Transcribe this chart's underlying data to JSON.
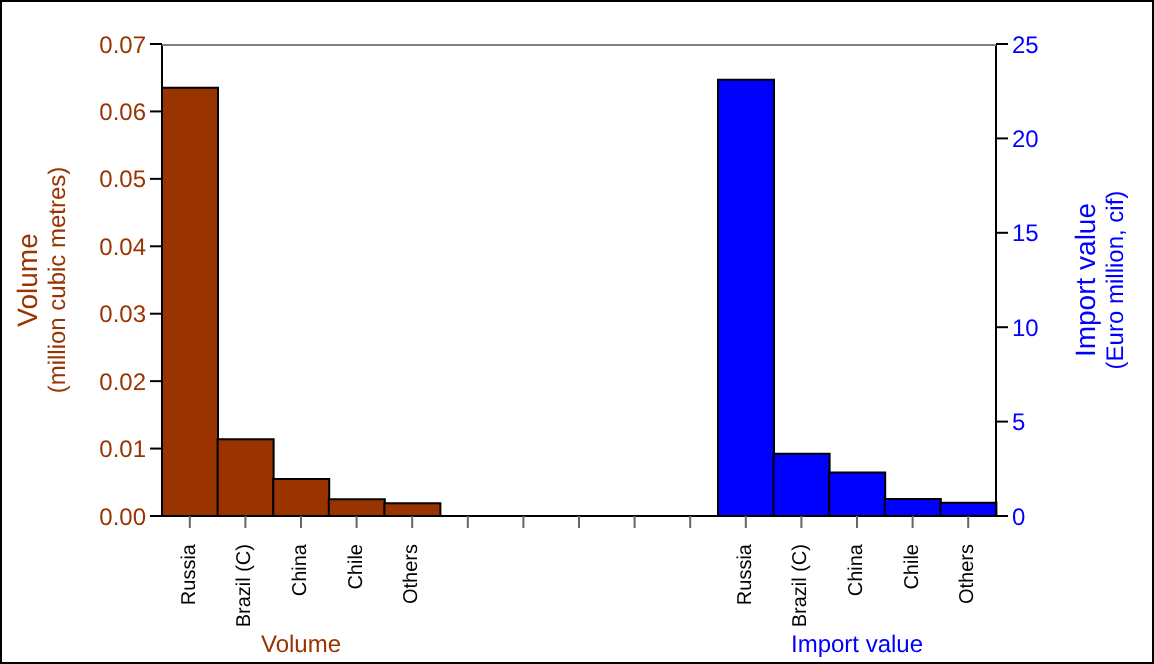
{
  "chart_data": {
    "type": "bar",
    "categories": [
      "Russia",
      "Brazil (C)",
      "China",
      "Chile",
      "Others",
      null,
      null,
      null,
      null,
      null,
      "Russia",
      "Brazil (C)",
      "China",
      "Chile",
      "Others"
    ],
    "series": [
      {
        "name": "Volume",
        "color": "#993300",
        "values": [
          0.0635,
          0.0114,
          0.0055,
          0.0025,
          0.0019,
          null,
          null,
          null,
          null,
          null,
          null,
          null,
          null,
          null,
          null
        ]
      },
      {
        "name": "Import value",
        "color": "#0000ff",
        "axis": "y2",
        "values": [
          null,
          null,
          null,
          null,
          null,
          null,
          null,
          null,
          null,
          null,
          23.1,
          3.3,
          2.3,
          0.9,
          0.7
        ]
      }
    ],
    "ylabel": "Volume\n(million cubic metres)",
    "y2label": "Import value\n(Euro million, cif)",
    "ylim": [
      0,
      0.07
    ],
    "yticks": [
      {
        "value": 0,
        "label": "0.00"
      },
      0.01,
      0.02,
      0.03,
      0.04,
      0.05,
      0.06,
      0.07
    ],
    "y2lim": [
      0,
      25
    ],
    "y2ticks": [
      0,
      5,
      10,
      15,
      20,
      25
    ]
  }
}
